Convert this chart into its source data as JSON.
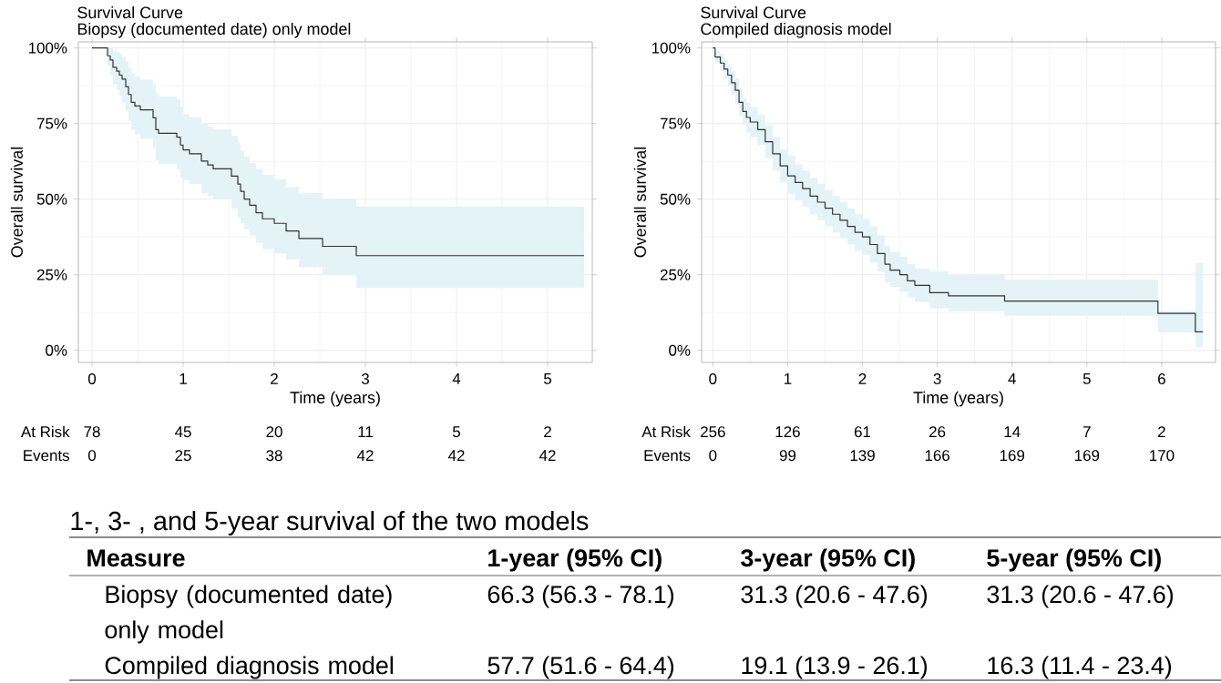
{
  "chart_data": [
    {
      "type": "step",
      "title": "Survival Curve",
      "subtitle": "Biopsy (documented date) only model",
      "xlabel": "Time (years)",
      "ylabel": "Overall survival",
      "xlim": [
        -0.15,
        5.49
      ],
      "ylim": [
        -4,
        102
      ],
      "xticks": [
        0,
        1,
        2,
        3,
        4,
        5
      ],
      "yticks": [
        {
          "value": 0,
          "label": "0%"
        },
        {
          "value": 25,
          "label": "25%"
        },
        {
          "value": 50,
          "label": "50%"
        },
        {
          "value": 75,
          "label": "75%"
        },
        {
          "value": 100,
          "label": "100%"
        }
      ],
      "grid": true,
      "annotations": [
        "At Risk",
        "78",
        "45",
        "20",
        "11",
        "5",
        "2",
        "Events",
        "0",
        "25",
        "38",
        "42",
        "42",
        "42"
      ],
      "series": [
        {
          "color": "#333333",
          "x": [
            0,
            0.13,
            0.17,
            0.2,
            0.23,
            0.27,
            0.3,
            0.33,
            0.37,
            0.4,
            0.43,
            0.47,
            0.53,
            0.67,
            0.7,
            0.73,
            0.93,
            0.97,
            1.0,
            1.07,
            1.2,
            1.27,
            1.33,
            1.53,
            1.6,
            1.63,
            1.67,
            1.73,
            1.8,
            1.87,
            2.0,
            2.13,
            2.27,
            2.53,
            2.9,
            5.4
          ],
          "values": [
            100,
            100,
            97.4,
            96,
            93.6,
            92.3,
            91,
            89.7,
            87.2,
            84.6,
            82,
            80.8,
            79.5,
            76.9,
            73,
            71.8,
            70.5,
            67.9,
            66.3,
            65,
            62.6,
            61.3,
            60,
            57.6,
            55,
            52.6,
            50,
            48,
            45.5,
            43.5,
            42,
            39.5,
            37,
            34.4,
            31.3,
            31.3
          ],
          "lower": [
            100,
            100,
            94,
            91,
            88,
            86,
            84,
            82,
            79,
            76,
            73,
            71.5,
            70,
            67,
            63,
            61.5,
            60,
            57,
            56.3,
            55,
            52,
            51,
            50,
            47,
            44,
            42,
            40,
            38,
            35.5,
            33.5,
            32,
            30,
            27.5,
            25,
            20.6,
            20.6
          ],
          "upper": [
            100,
            100,
            100,
            100,
            99,
            98.5,
            98,
            97,
            95.5,
            93.5,
            91.5,
            90.5,
            89.5,
            88,
            85,
            84,
            83,
            80.5,
            78.1,
            77,
            75,
            74,
            73,
            71,
            68.5,
            66,
            64,
            62,
            60,
            58,
            56.5,
            54,
            52,
            50,
            47.6,
            47.6
          ]
        }
      ]
    },
    {
      "type": "step",
      "title": "Survival Curve",
      "subtitle": "Compiled diagnosis model",
      "xlabel": "Time (years)",
      "ylabel": "Overall survival",
      "xlim": [
        -0.15,
        6.72
      ],
      "ylim": [
        -4,
        102
      ],
      "xticks": [
        0,
        1,
        2,
        3,
        4,
        5,
        6
      ],
      "yticks": [
        {
          "value": 0,
          "label": "0%"
        },
        {
          "value": 25,
          "label": "25%"
        },
        {
          "value": 50,
          "label": "50%"
        },
        {
          "value": 75,
          "label": "75%"
        },
        {
          "value": 100,
          "label": "100%"
        }
      ],
      "grid": true,
      "annotations": [
        "At Risk",
        "256",
        "126",
        "61",
        "26",
        "14",
        "7",
        "2",
        "Events",
        "0",
        "99",
        "139",
        "166",
        "169",
        "169",
        "170"
      ],
      "series": [
        {
          "color": "#333333",
          "x": [
            0,
            0.03,
            0.1,
            0.15,
            0.2,
            0.25,
            0.3,
            0.35,
            0.4,
            0.45,
            0.5,
            0.6,
            0.7,
            0.8,
            0.9,
            1.0,
            1.1,
            1.2,
            1.3,
            1.4,
            1.5,
            1.6,
            1.7,
            1.8,
            1.9,
            2.0,
            2.1,
            2.2,
            2.3,
            2.37,
            2.5,
            2.6,
            2.7,
            2.9,
            3.15,
            3.9,
            5.95,
            6.45,
            6.55
          ],
          "values": [
            100,
            97,
            95,
            93,
            91,
            88.5,
            86,
            82,
            79,
            77,
            75.5,
            73,
            69,
            65,
            61,
            57.7,
            55.5,
            53.5,
            51,
            49,
            47,
            45,
            43,
            41,
            39,
            37.5,
            35,
            32,
            28.5,
            26.5,
            25,
            23,
            21.5,
            19.1,
            18,
            16.3,
            12.2,
            6.1,
            6.1
          ],
          "lower": [
            100,
            95,
            92.5,
            90,
            87.5,
            84.5,
            81.5,
            77.5,
            74.5,
            72,
            70.5,
            68,
            63.5,
            59.5,
            55.5,
            51.6,
            49.5,
            47.5,
            45,
            43,
            41,
            39,
            37,
            35,
            33,
            31.5,
            29,
            26,
            22.5,
            21,
            19.5,
            17.5,
            16,
            13.9,
            13,
            11.4,
            6,
            1,
            1
          ],
          "upper": [
            100,
            99,
            98,
            96,
            94.5,
            92.5,
            90,
            86.5,
            83.5,
            82,
            80.5,
            78,
            74.5,
            70.5,
            66.5,
            64.4,
            61.5,
            59.5,
            57,
            55,
            53,
            51,
            49,
            47,
            45,
            43.5,
            41,
            38,
            34.5,
            32.5,
            31,
            28.5,
            27,
            26.1,
            25,
            23.4,
            13,
            29,
            29
          ]
        }
      ]
    },
    {
      "type": "other",
      "title": "1-, 3- , and 5-year survival of the two models",
      "annotations": [
        "Measure",
        "1-year (95% CI)",
        "3-year (95% CI)",
        "5-year (95% CI)",
        "Biopsy (documented date) only model",
        "66.3 (56.3 - 78.1)",
        "31.3 (20.6 - 47.6)",
        "31.3 (20.6 - 47.6)",
        "Compiled diagnosis model",
        "57.7 (51.6 - 64.4)",
        "19.1 (13.9 - 26.1)",
        "16.3 (11.4 - 23.4)"
      ]
    }
  ]
}
